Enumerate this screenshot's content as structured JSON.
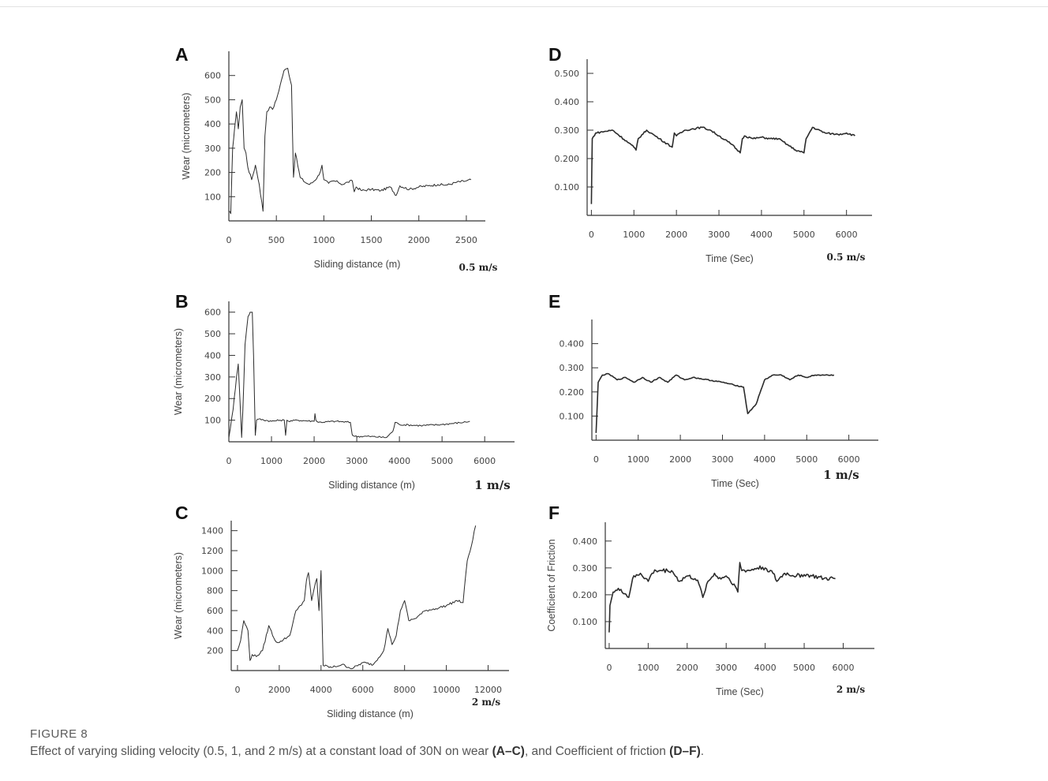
{
  "caption": {
    "label": "FIGURE 8",
    "text_before": "Effect of varying sliding velocity (0.5, 1, and 2 m/s) at a constant load of 30N on wear ",
    "ref1": "(A–C)",
    "text_middle": ", and Coefficient of friction ",
    "ref2": "(D–F)",
    "text_after": "."
  },
  "colors": {
    "line": "#2b2b2b",
    "axis": "#333333",
    "text": "#444444"
  },
  "chart_data": [
    {
      "id": "A",
      "panel_label": "A",
      "type": "line",
      "xlabel": "Sliding distance (m)",
      "ylabel": "Wear (micrometers)",
      "speed_label": "0.5 m/s",
      "xlim": [
        0,
        2700
      ],
      "ylim": [
        0,
        700
      ],
      "xticks": [
        0,
        500,
        1000,
        1500,
        2000,
        2500
      ],
      "yticks": [
        100,
        200,
        300,
        400,
        500,
        600
      ],
      "ytick_labels": [
        "100",
        "200",
        "300",
        "400",
        "500",
        "600"
      ],
      "series": [
        {
          "noise": 5,
          "x": [
            0,
            20,
            40,
            60,
            80,
            100,
            120,
            140,
            160,
            180,
            200,
            240,
            280,
            320,
            360,
            380,
            400,
            430,
            460,
            500,
            540,
            580,
            620,
            660,
            680,
            700,
            750,
            800,
            850,
            900,
            950,
            980,
            1000,
            1050,
            1100,
            1150,
            1200,
            1250,
            1300,
            1320,
            1340,
            1400,
            1500,
            1600,
            1700,
            1760,
            1800,
            1900,
            2000,
            2100,
            2200,
            2300,
            2400,
            2500,
            2550
          ],
          "y": [
            40,
            30,
            300,
            380,
            450,
            380,
            470,
            500,
            300,
            280,
            220,
            170,
            230,
            150,
            40,
            350,
            450,
            470,
            460,
            500,
            560,
            620,
            630,
            560,
            180,
            280,
            180,
            160,
            150,
            165,
            190,
            230,
            170,
            155,
            165,
            160,
            150,
            160,
            165,
            120,
            140,
            125,
            130,
            125,
            140,
            105,
            145,
            130,
            140,
            145,
            150,
            148,
            160,
            165,
            170
          ]
        }
      ]
    },
    {
      "id": "B",
      "panel_label": "B",
      "type": "line",
      "xlabel": "Sliding distance (m)",
      "ylabel": "Wear (micrometers)",
      "speed_label": "1 m/s",
      "xlim": [
        0,
        6700
      ],
      "ylim": [
        0,
        650
      ],
      "xticks": [
        0,
        1000,
        2000,
        3000,
        4000,
        5000,
        6000
      ],
      "yticks": [
        100,
        200,
        300,
        400,
        500,
        600
      ],
      "ytick_labels": [
        "100",
        "200",
        "300",
        "400",
        "500",
        "600"
      ],
      "series": [
        {
          "noise": 4,
          "x": [
            0,
            100,
            180,
            220,
            260,
            300,
            330,
            380,
            450,
            500,
            550,
            580,
            620,
            650,
            700,
            1000,
            1200,
            1300,
            1330,
            1360,
            1400,
            1600,
            2000,
            2020,
            2040,
            2100,
            2500,
            2850,
            2880,
            2900,
            2950,
            3300,
            3700,
            3850,
            3900,
            4000,
            4500,
            5000,
            5500,
            5650
          ],
          "y": [
            20,
            150,
            300,
            360,
            200,
            20,
            150,
            450,
            580,
            600,
            600,
            400,
            30,
            100,
            105,
            95,
            100,
            100,
            30,
            100,
            95,
            100,
            95,
            130,
            100,
            90,
            95,
            90,
            50,
            30,
            25,
            25,
            20,
            50,
            90,
            80,
            75,
            80,
            90,
            95
          ]
        }
      ]
    },
    {
      "id": "C",
      "panel_label": "C",
      "type": "line",
      "xlabel": "Sliding distance (m)",
      "ylabel": "Wear (micrometers)",
      "speed_label": "2 m/s",
      "xlim": [
        -300,
        13000
      ],
      "ylim": [
        0,
        1500
      ],
      "xticks": [
        0,
        2000,
        4000,
        6000,
        8000,
        10000,
        12000
      ],
      "yticks": [
        200,
        400,
        600,
        800,
        1000,
        1200,
        1400
      ],
      "ytick_labels": [
        "200",
        "400",
        "600",
        "800",
        "1000",
        "1200",
        "1400"
      ],
      "series": [
        {
          "noise": 12,
          "x": [
            0,
            150,
            300,
            500,
            600,
            700,
            900,
            1200,
            1500,
            1800,
            2000,
            2200,
            2500,
            2800,
            3000,
            3200,
            3300,
            3400,
            3550,
            3700,
            3800,
            3900,
            4000,
            4100,
            4500,
            5000,
            5500,
            6000,
            6500,
            7000,
            7200,
            7400,
            7600,
            7800,
            8000,
            8200,
            8500,
            9000,
            9500,
            10000,
            10500,
            10800,
            11000,
            11200,
            11400
          ],
          "y": [
            200,
            300,
            500,
            400,
            100,
            160,
            140,
            200,
            450,
            300,
            280,
            310,
            350,
            600,
            650,
            700,
            900,
            980,
            700,
            850,
            920,
            600,
            1000,
            50,
            30,
            60,
            20,
            80,
            60,
            200,
            420,
            260,
            350,
            600,
            700,
            500,
            520,
            600,
            620,
            650,
            700,
            680,
            1100,
            1250,
            1450
          ]
        }
      ]
    },
    {
      "id": "D",
      "panel_label": "D",
      "type": "line",
      "xlabel": "Time (Sec)",
      "ylabel": "",
      "speed_label": "0.5 m/s",
      "xlim": [
        -100,
        6600
      ],
      "ylim": [
        0,
        0.55
      ],
      "xticks": [
        0,
        1000,
        2000,
        3000,
        4000,
        5000,
        6000
      ],
      "yticks": [
        0.1,
        0.2,
        0.3,
        0.4,
        0.5
      ],
      "ytick_labels": [
        "0.100",
        "0.200",
        "0.300",
        "0.400",
        "0.500"
      ],
      "series": [
        {
          "noise": 0.003,
          "x": [
            0,
            20,
            100,
            300,
            500,
            1000,
            1050,
            1100,
            1300,
            1400,
            1600,
            1900,
            1950,
            2000,
            2200,
            2600,
            2800,
            3000,
            3300,
            3500,
            3550,
            3600,
            3800,
            4000,
            4200,
            4400,
            4600,
            4800,
            5000,
            5050,
            5200,
            5500,
            5800,
            6000,
            6200
          ],
          "y": [
            0.04,
            0.27,
            0.29,
            0.295,
            0.3,
            0.24,
            0.23,
            0.27,
            0.3,
            0.29,
            0.27,
            0.24,
            0.29,
            0.28,
            0.3,
            0.31,
            0.3,
            0.28,
            0.25,
            0.22,
            0.27,
            0.28,
            0.27,
            0.275,
            0.27,
            0.27,
            0.25,
            0.23,
            0.22,
            0.27,
            0.31,
            0.29,
            0.285,
            0.29,
            0.28
          ]
        }
      ]
    },
    {
      "id": "E",
      "panel_label": "E",
      "type": "line",
      "xlabel": "Time (Sec)",
      "ylabel": "",
      "speed_label": "1 m/s",
      "xlim": [
        -100,
        6700
      ],
      "ylim": [
        0,
        0.5
      ],
      "xticks": [
        0,
        1000,
        2000,
        3000,
        4000,
        5000,
        6000
      ],
      "yticks": [
        0.1,
        0.2,
        0.3,
        0.4
      ],
      "ytick_labels": [
        "0.100",
        "0.200",
        "0.300",
        "0.400"
      ],
      "series": [
        {
          "noise": 0.002,
          "x": [
            0,
            50,
            150,
            300,
            500,
            700,
            900,
            1100,
            1300,
            1500,
            1700,
            1900,
            2100,
            2300,
            3000,
            3500,
            3600,
            3800,
            4000,
            4200,
            4400,
            4600,
            4800,
            5000,
            5200,
            5500,
            5650
          ],
          "y": [
            0.03,
            0.24,
            0.27,
            0.275,
            0.25,
            0.26,
            0.24,
            0.26,
            0.24,
            0.26,
            0.24,
            0.27,
            0.25,
            0.26,
            0.24,
            0.22,
            0.11,
            0.15,
            0.25,
            0.27,
            0.27,
            0.25,
            0.27,
            0.26,
            0.27,
            0.27,
            0.27
          ]
        }
      ]
    },
    {
      "id": "F",
      "panel_label": "F",
      "type": "line",
      "xlabel": "Time (Sec)",
      "ylabel": "Coefficient of Friction",
      "speed_label": "2 m/s",
      "xlim": [
        -100,
        6800
      ],
      "ylim": [
        0,
        0.47
      ],
      "xticks": [
        0,
        1000,
        2000,
        3000,
        4000,
        5000,
        6000
      ],
      "yticks": [
        0.1,
        0.2,
        0.3,
        0.4
      ],
      "ytick_labels": [
        "0.100",
        "0.200",
        "0.300",
        "0.400"
      ],
      "series": [
        {
          "noise": 0.008,
          "x": [
            0,
            20,
            100,
            300,
            500,
            600,
            800,
            1000,
            1100,
            1200,
            1600,
            1800,
            2000,
            2200,
            2300,
            2400,
            2500,
            2700,
            2800,
            3000,
            3200,
            3300,
            3350,
            3400,
            3600,
            3800,
            4000,
            4200,
            4300,
            4500,
            4800,
            5000,
            5200,
            5500,
            5800
          ],
          "y": [
            0.06,
            0.16,
            0.21,
            0.22,
            0.19,
            0.26,
            0.28,
            0.25,
            0.28,
            0.29,
            0.29,
            0.25,
            0.27,
            0.26,
            0.24,
            0.19,
            0.24,
            0.28,
            0.26,
            0.27,
            0.24,
            0.21,
            0.32,
            0.29,
            0.29,
            0.3,
            0.3,
            0.28,
            0.25,
            0.28,
            0.27,
            0.275,
            0.27,
            0.26,
            0.26
          ]
        }
      ]
    }
  ]
}
